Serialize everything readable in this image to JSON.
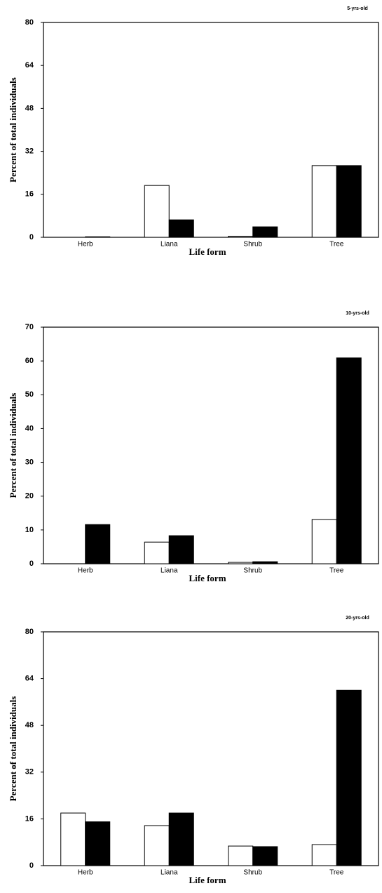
{
  "chart_data": [
    {
      "type": "bar",
      "annotation": "5-yrs-old",
      "y_label": "Percent of total individuals",
      "x_label": "Life form",
      "categories": [
        "Herb",
        "Liana",
        "Shrub",
        "Tree"
      ],
      "series": [
        {
          "color": "#ffffff",
          "values": [
            0,
            19.3,
            0.4,
            26.7
          ]
        },
        {
          "color": "#000000",
          "values": [
            0.2,
            6.5,
            3.9,
            26.7
          ]
        }
      ],
      "ylim": [
        0,
        80
      ],
      "yticks": [
        0,
        16,
        32,
        48,
        64,
        80
      ]
    },
    {
      "type": "bar",
      "annotation": "10-yrs-old",
      "y_label": "Percent of total individuals",
      "x_label": "Life form",
      "categories": [
        "Herb",
        "Liana",
        "Shrub",
        "Tree"
      ],
      "series": [
        {
          "color": "#ffffff",
          "values": [
            0,
            6.4,
            0.4,
            13.1
          ]
        },
        {
          "color": "#000000",
          "values": [
            11.6,
            8.3,
            0.6,
            60.9
          ]
        }
      ],
      "ylim": [
        0,
        70
      ],
      "yticks": [
        0,
        10,
        20,
        30,
        40,
        50,
        60,
        70
      ]
    },
    {
      "type": "bar",
      "annotation": "20-yrs-old",
      "y_label": "Percent of total individuals",
      "x_label": "Life form",
      "categories": [
        "Herb",
        "Liana",
        "Shrub",
        "Tree"
      ],
      "series": [
        {
          "color": "#ffffff",
          "values": [
            18,
            13.7,
            6.7,
            7.2
          ]
        },
        {
          "color": "#000000",
          "values": [
            15,
            18,
            6.5,
            60
          ]
        }
      ],
      "ylim": [
        0,
        80
      ],
      "yticks": [
        0,
        16,
        32,
        48,
        64,
        80
      ]
    }
  ]
}
